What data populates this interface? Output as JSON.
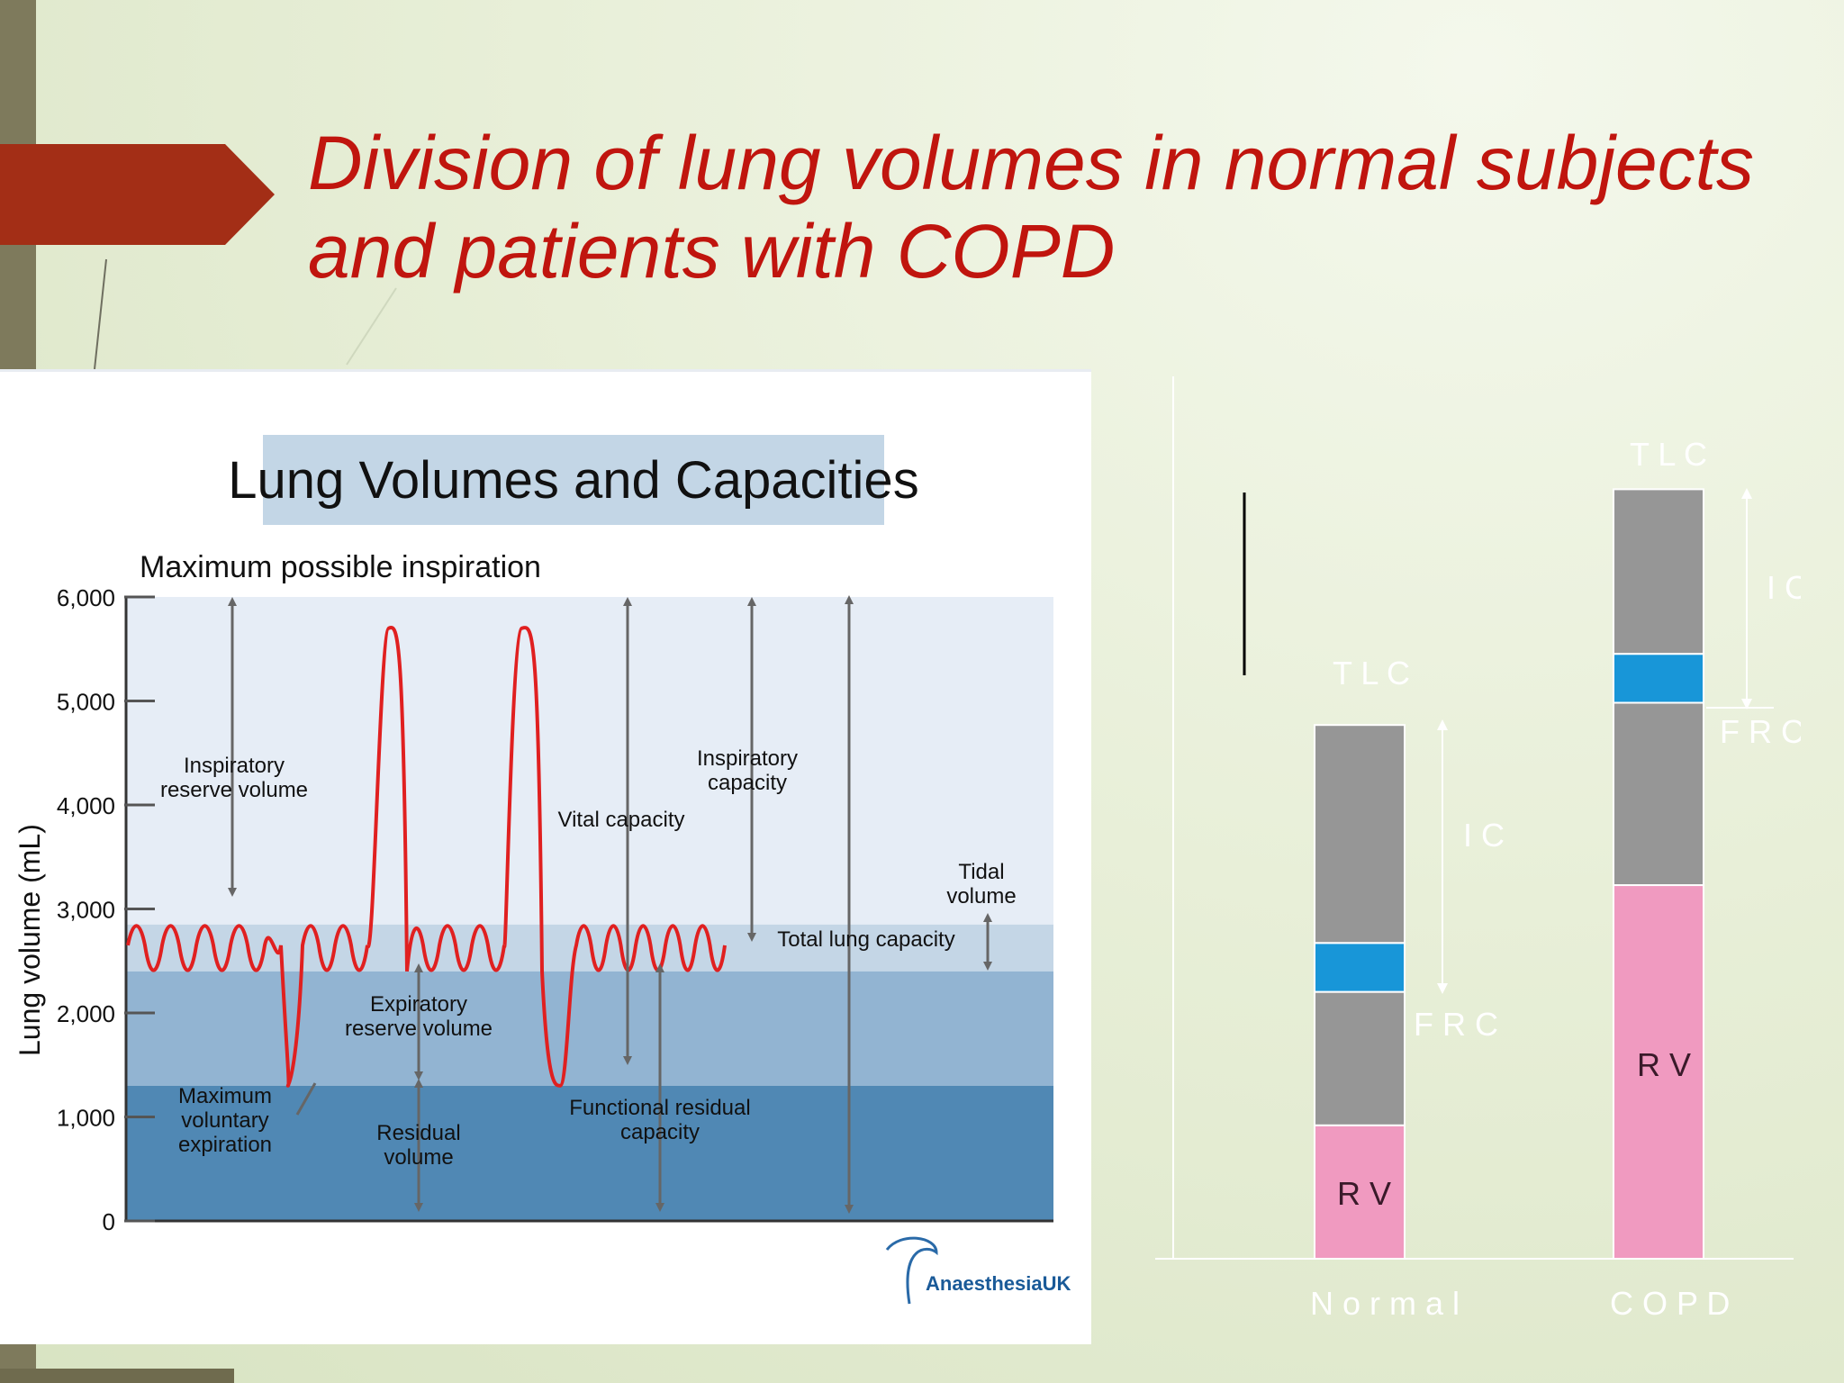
{
  "slide": {
    "title_line1": "Division of lung volumes in normal subjects",
    "title_line2": "and patients with COPD"
  },
  "colors": {
    "title": "#c0150e",
    "arrow": "#a32e16",
    "tidal_trace": "#e02020",
    "band_irv": "#e6edf6",
    "band_tv": "#c4d6e6",
    "band_erv": "#92b4d2",
    "band_rv": "#5088b4",
    "bar_grey": "#969696",
    "bar_blue": "#1896d8",
    "bar_pink": "#f09ac0"
  },
  "chart_data": [
    {
      "type": "diagram",
      "title": "Lung Volumes and Capacities",
      "top_label": "Maximum possible inspiration",
      "ylabel": "Lung volume (mL)",
      "ylim": [
        0,
        6000
      ],
      "yticks": [
        "0",
        "1,000",
        "2,000",
        "3,000",
        "4,000",
        "5,000",
        "6,000"
      ],
      "bands": [
        {
          "name": "Inspiratory reserve volume",
          "from": 2850,
          "to": 6000
        },
        {
          "name": "Tidal volume",
          "from": 2400,
          "to": 2850
        },
        {
          "name": "Expiratory reserve volume",
          "from": 1300,
          "to": 2400
        },
        {
          "name": "Residual volume",
          "from": 0,
          "to": 1300
        }
      ],
      "trace_peaks_mL": [
        5700,
        1300
      ],
      "labels": {
        "irv": [
          "Inspiratory",
          "reserve volume"
        ],
        "ic": [
          "Inspiratory",
          "capacity"
        ],
        "vc": "Vital capacity",
        "tv": [
          "Tidal",
          "volume"
        ],
        "tlc": "Total lung capacity",
        "erv": [
          "Expiratory",
          "reserve volume"
        ],
        "mve": [
          "Maximum",
          "voluntary",
          "expiration"
        ],
        "rv": [
          "Residual",
          "volume"
        ],
        "frc": [
          "Functional residual",
          "capacity"
        ]
      },
      "logo": "AnaesthesiaUK"
    },
    {
      "type": "bar",
      "stacked": true,
      "categories": [
        "Normal",
        "COPD"
      ],
      "segments_bottom_to_top": [
        "RV",
        "",
        "",
        ""
      ],
      "values_relative": {
        "Normal": [
          0.15,
          0.15,
          0.055,
          0.245
        ],
        "COPD": [
          0.42,
          0.205,
          0.055,
          0.185
        ]
      },
      "labels": {
        "tlc": "T L C",
        "ic": "I C",
        "frc": "F R C",
        "rv": "R V",
        "normal": "N o r m a l",
        "copd": "C O P D"
      }
    }
  ]
}
